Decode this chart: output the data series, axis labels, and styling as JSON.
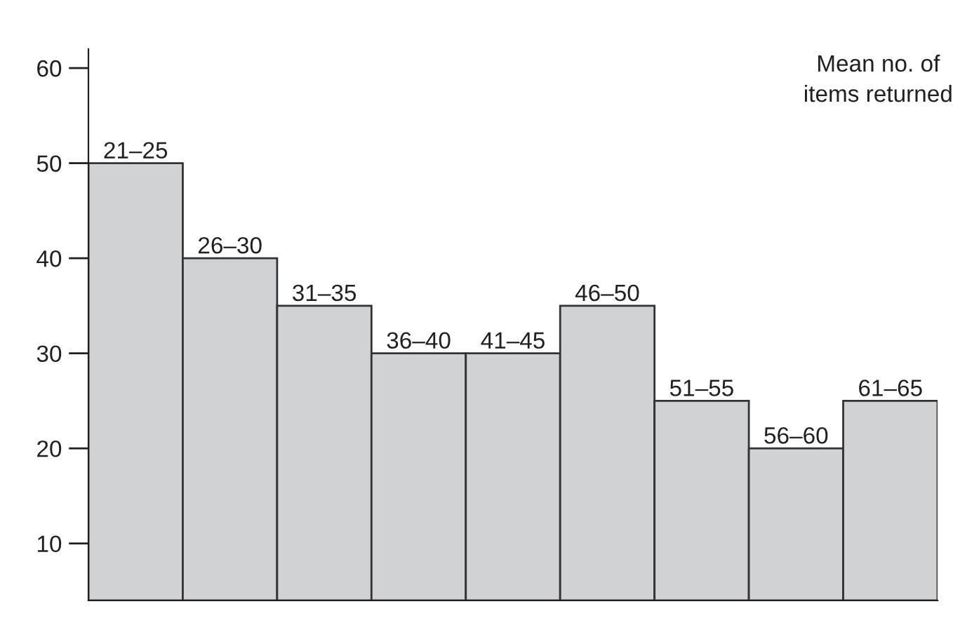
{
  "chart_data": {
    "type": "bar",
    "categories": [
      "21–25",
      "26–30",
      "31–35",
      "36–40",
      "41–45",
      "46–50",
      "51–55",
      "56–60",
      "61–65"
    ],
    "values": [
      50,
      40,
      35,
      30,
      30,
      35,
      25,
      20,
      25
    ],
    "color": "#d1d2d4",
    "ylim": [
      4,
      62
    ],
    "yticks": [
      10,
      20,
      30,
      40,
      50,
      60
    ],
    "annotations": [
      "Mean no. of\nitems returned"
    ],
    "grid": false,
    "legend": false
  }
}
